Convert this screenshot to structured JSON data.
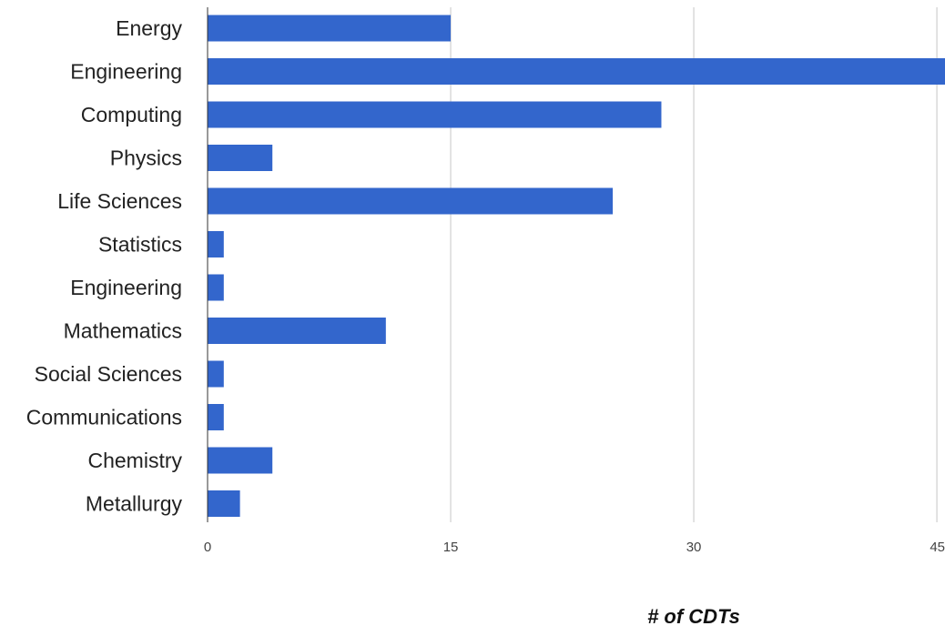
{
  "chart_data": {
    "type": "bar",
    "orientation": "horizontal",
    "categories": [
      "Energy",
      "Engineering",
      "Computing",
      "Physics",
      "Life Sciences",
      "Statistics",
      "Engineering",
      "Mathematics",
      "Social Sciences",
      "Communications",
      "Chemistry",
      "Metallurgy"
    ],
    "values": [
      15,
      46,
      28,
      4,
      25,
      1,
      1,
      11,
      1,
      1,
      4,
      2
    ],
    "xlabel": "# of CDTs",
    "ylabel": "",
    "xlim": [
      0,
      45.5
    ],
    "xticks": [
      0,
      15,
      30,
      45
    ],
    "xtick_labels": [
      "0",
      "15",
      "30",
      "45"
    ],
    "grid": "vertical",
    "bar_color": "#3366cc"
  }
}
